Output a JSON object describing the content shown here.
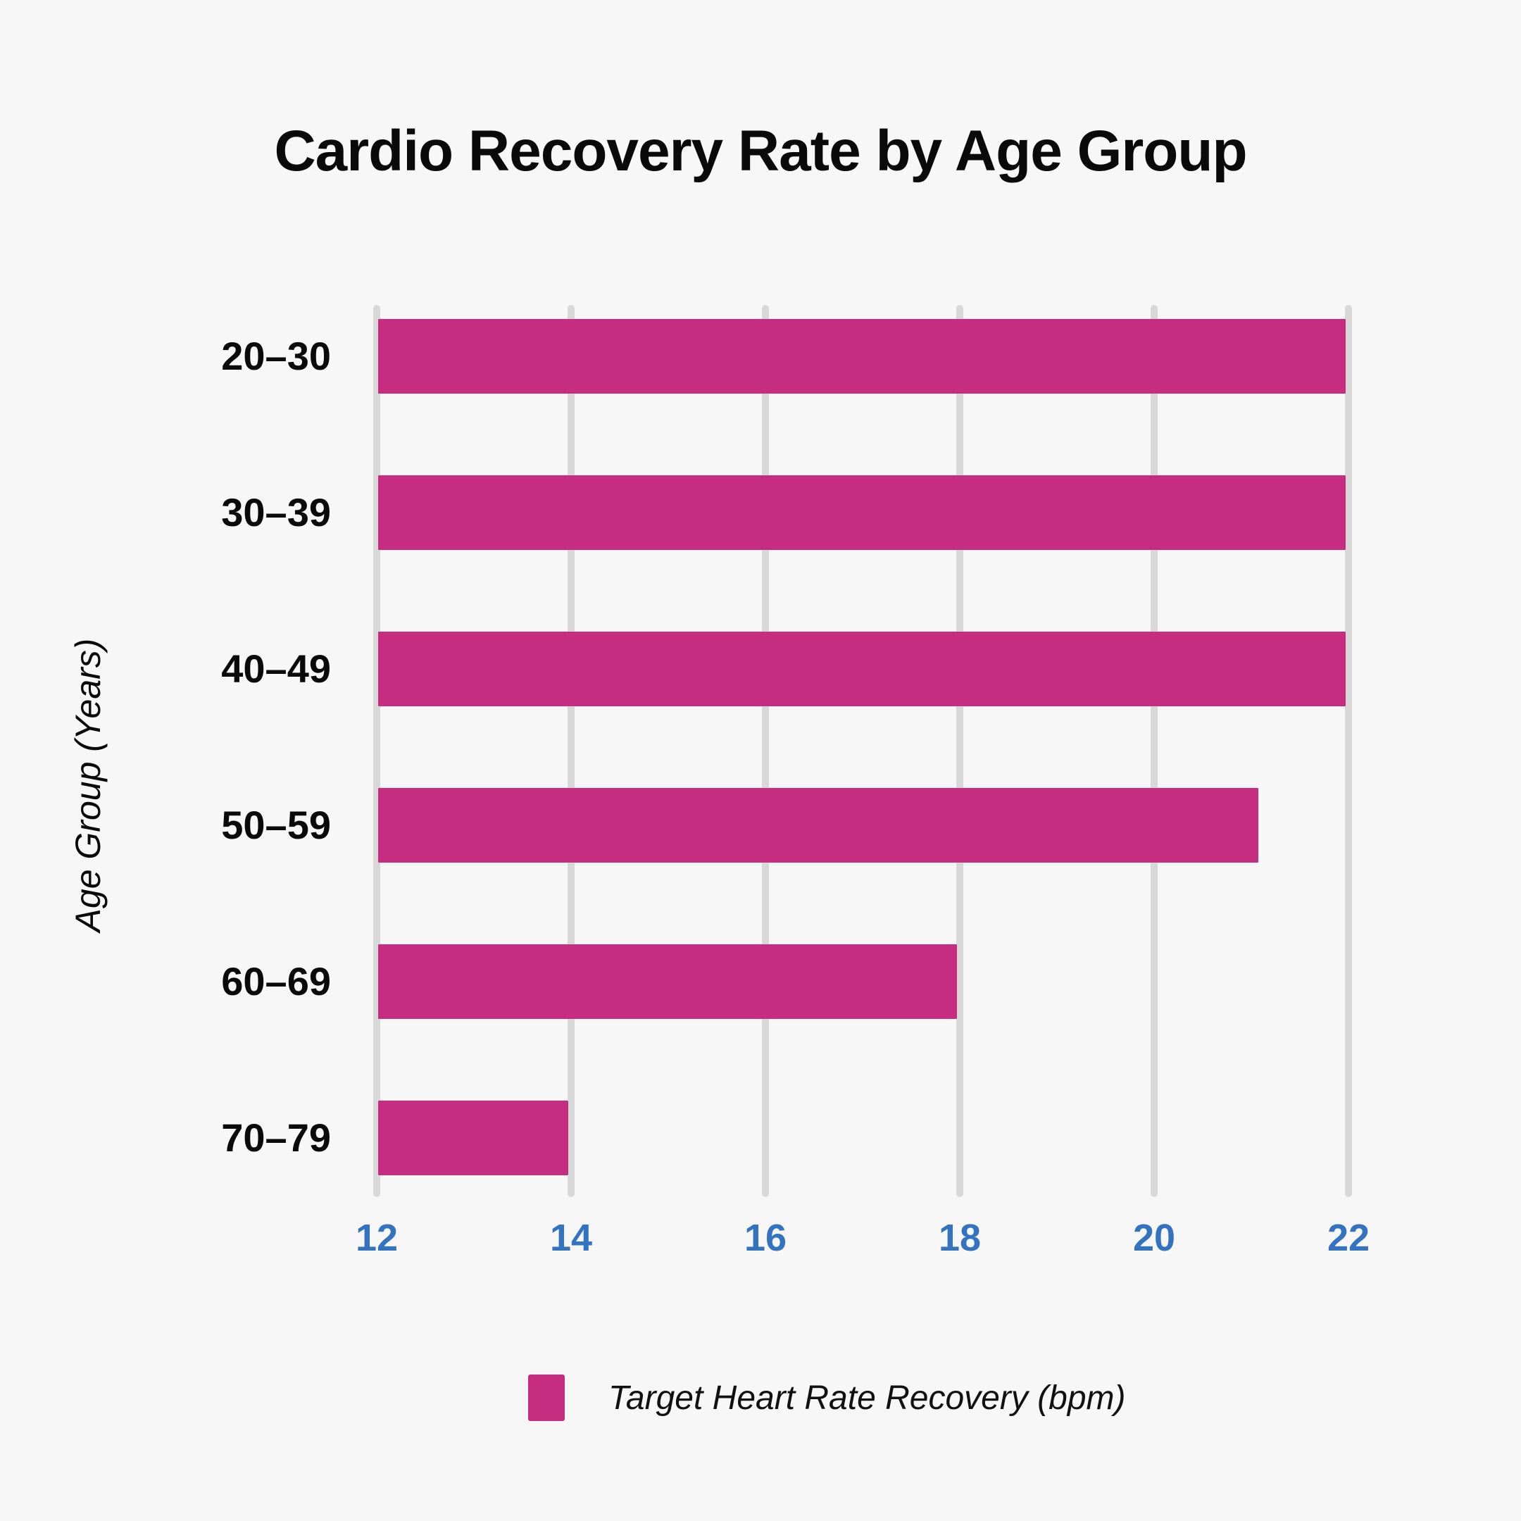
{
  "title": {
    "text": "Cardio Recovery Rate by Age Group"
  },
  "y_axis": {
    "title": "Age Group (Years)"
  },
  "legend": {
    "label": "Target Heart Rate Recovery (bpm)"
  },
  "colors": {
    "background": "#f7f7f7",
    "bar": "#c62d81",
    "gridline": "#d8d8d8",
    "x_tick_label": "#3473c0",
    "text": "#0a0a0a"
  },
  "chart_data": {
    "type": "bar",
    "orientation": "horizontal",
    "title": "Cardio Recovery Rate by Age Group",
    "categories": [
      "20–30",
      "30–39",
      "40–49",
      "50–59",
      "60–69",
      "70–79"
    ],
    "series": [
      {
        "name": "Target Heart Rate Recovery (bpm)",
        "values": [
          22,
          22,
          22,
          21.1,
          18,
          14
        ]
      }
    ],
    "xlabel": "",
    "ylabel": "Age Group (Years)",
    "xlim": [
      12,
      22
    ],
    "xticks": [
      12,
      14,
      16,
      18,
      20,
      22
    ],
    "grid": "vertical",
    "legend_position": "bottom"
  }
}
